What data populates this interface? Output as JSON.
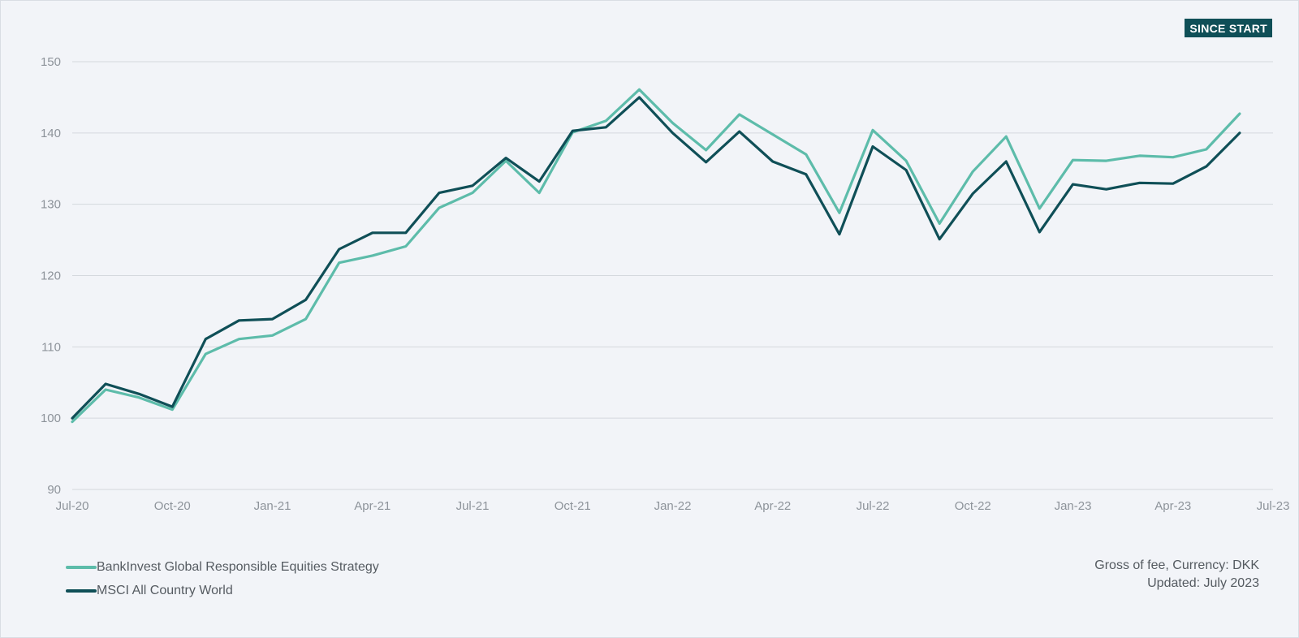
{
  "badge": "SINCE START",
  "colors": {
    "strategy": "#5dbcaa",
    "benchmark": "#0f4f57",
    "grid": "#d4d8dd",
    "axis_text": "#8d939a",
    "background": "#f2f4f8"
  },
  "chart_data": {
    "type": "line",
    "title": "",
    "xlabel": "",
    "ylabel": "",
    "ylim": [
      90,
      150
    ],
    "yticks": [
      "90",
      "100",
      "110",
      "120",
      "130",
      "140",
      "150"
    ],
    "xticks": [
      "Jul-20",
      "Oct-20",
      "Jan-21",
      "Apr-21",
      "Jul-21",
      "Oct-21",
      "Jan-22",
      "Apr-22",
      "Jul-22",
      "Oct-22",
      "Jan-23",
      "Apr-23",
      "Jul-23"
    ],
    "grid": true,
    "legend_position": "bottom-left",
    "x": [
      "Jul-20",
      "Aug-20",
      "Sep-20",
      "Oct-20",
      "Nov-20",
      "Dec-20",
      "Jan-21",
      "Feb-21",
      "Mar-21",
      "Apr-21",
      "May-21",
      "Jun-21",
      "Jul-21",
      "Aug-21",
      "Sep-21",
      "Oct-21",
      "Nov-21",
      "Dec-21",
      "Jan-22",
      "Feb-22",
      "Mar-22",
      "Apr-22",
      "May-22",
      "Jun-22",
      "Jul-22",
      "Aug-22",
      "Sep-22",
      "Oct-22",
      "Nov-22",
      "Dec-22",
      "Jan-23",
      "Feb-23",
      "Mar-23",
      "Apr-23",
      "May-23",
      "Jun-23"
    ],
    "series": [
      {
        "name": "BankInvest Global Responsible Equities Strategy",
        "values": [
          99.5,
          104.0,
          102.9,
          101.2,
          109.0,
          111.1,
          111.6,
          113.9,
          121.8,
          122.8,
          124.1,
          129.5,
          131.6,
          136.1,
          131.6,
          140.1,
          141.7,
          146.1,
          141.4,
          137.6,
          142.6,
          139.8,
          137.0,
          128.8,
          140.4,
          136.1,
          127.3,
          134.6,
          139.5,
          129.4,
          136.2,
          136.1,
          136.8,
          136.6,
          137.7,
          142.7
        ]
      },
      {
        "name": "MSCI All Country World",
        "values": [
          100.0,
          104.8,
          103.4,
          101.6,
          111.1,
          113.7,
          113.9,
          116.6,
          123.7,
          126.0,
          126.0,
          131.6,
          132.6,
          136.5,
          133.2,
          140.3,
          140.8,
          145.0,
          140.0,
          135.9,
          140.2,
          136.0,
          134.2,
          125.8,
          138.1,
          134.8,
          125.1,
          131.5,
          136.0,
          126.1,
          132.8,
          132.1,
          133.0,
          132.9,
          135.3,
          140.0
        ]
      }
    ]
  },
  "legend": [
    {
      "label": "BankInvest Global Responsible Equities Strategy"
    },
    {
      "label": "MSCI All Country World"
    }
  ],
  "note": {
    "line1": "Gross of fee, Currency: DKK",
    "line2": "Updated: July 2023"
  }
}
